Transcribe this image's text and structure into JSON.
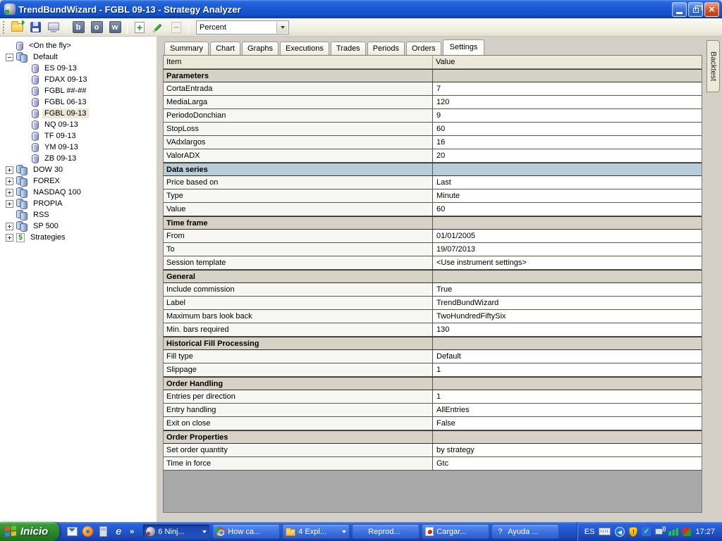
{
  "window": {
    "title": "TrendBundWizard - FGBL 09-13 - Strategy Analyzer"
  },
  "toolbar": {
    "letter_buttons": [
      "b",
      "o",
      "w"
    ],
    "combo": {
      "value": "Percent"
    }
  },
  "tabs": {
    "items": [
      {
        "label": "Summary"
      },
      {
        "label": "Chart"
      },
      {
        "label": "Graphs"
      },
      {
        "label": "Executions"
      },
      {
        "label": "Trades"
      },
      {
        "label": "Periods"
      },
      {
        "label": "Orders"
      },
      {
        "label": "Settings",
        "active": true
      }
    ]
  },
  "side_tab": {
    "label": "Backtest"
  },
  "tree": {
    "items": [
      {
        "label": "<On the fly>",
        "level": 1,
        "expander": "none",
        "icon": "database"
      },
      {
        "label": "Default",
        "level": 1,
        "expander": "minus",
        "icon": "database-group"
      },
      {
        "label": "ES 09-13",
        "level": 2,
        "expander": "none",
        "icon": "database"
      },
      {
        "label": "FDAX 09-13",
        "level": 2,
        "expander": "none",
        "icon": "database"
      },
      {
        "label": "FGBL ##-##",
        "level": 2,
        "expander": "none",
        "icon": "database"
      },
      {
        "label": "FGBL 06-13",
        "level": 2,
        "expander": "none",
        "icon": "database"
      },
      {
        "label": "FGBL 09-13",
        "level": 2,
        "expander": "none",
        "icon": "database",
        "selected": true
      },
      {
        "label": "NQ 09-13",
        "level": 2,
        "expander": "none",
        "icon": "database"
      },
      {
        "label": "TF 09-13",
        "level": 2,
        "expander": "none",
        "icon": "database"
      },
      {
        "label": "YM 09-13",
        "level": 2,
        "expander": "none",
        "icon": "database"
      },
      {
        "label": "ZB 09-13",
        "level": 2,
        "expander": "none",
        "icon": "database"
      },
      {
        "label": "DOW 30",
        "level": 1,
        "expander": "plus",
        "icon": "database-group"
      },
      {
        "label": "FOREX",
        "level": 1,
        "expander": "plus",
        "icon": "database-group"
      },
      {
        "label": "NASDAQ 100",
        "level": 1,
        "expander": "plus",
        "icon": "database-group"
      },
      {
        "label": "PROPIA",
        "level": 1,
        "expander": "plus",
        "icon": "database-group"
      },
      {
        "label": "RSS",
        "level": 1,
        "expander": "none",
        "icon": "database-group"
      },
      {
        "label": "SP 500",
        "level": 1,
        "expander": "plus",
        "icon": "database-group"
      },
      {
        "label": "Strategies",
        "level": 1,
        "expander": "plus",
        "icon": "strategy"
      }
    ]
  },
  "settings_table": {
    "columns": [
      "Item",
      "Value"
    ],
    "rows": [
      {
        "type": "section",
        "item": "Parameters",
        "accent": "gray"
      },
      {
        "type": "data",
        "item": "CortaEntrada",
        "value": "7"
      },
      {
        "type": "data",
        "item": "MediaLarga",
        "value": "120"
      },
      {
        "type": "data",
        "item": "PeriodoDonchian",
        "value": "9"
      },
      {
        "type": "data",
        "item": "StopLoss",
        "value": "60"
      },
      {
        "type": "data",
        "item": "VAdxlargos",
        "value": "16"
      },
      {
        "type": "data",
        "item": "ValorADX",
        "value": "20"
      },
      {
        "type": "section",
        "item": "Data series",
        "accent": "blue"
      },
      {
        "type": "data",
        "item": "Price based on",
        "value": "Last"
      },
      {
        "type": "data",
        "item": "Type",
        "value": "Minute"
      },
      {
        "type": "data",
        "item": "Value",
        "value": "60"
      },
      {
        "type": "section",
        "item": "Time frame",
        "accent": "gray"
      },
      {
        "type": "data",
        "item": "From",
        "value": "01/01/2005"
      },
      {
        "type": "data",
        "item": "To",
        "value": "19/07/2013"
      },
      {
        "type": "data",
        "item": "Session template",
        "value": "<Use instrument settings>"
      },
      {
        "type": "section",
        "item": "General",
        "accent": "gray"
      },
      {
        "type": "data",
        "item": "Include commission",
        "value": "True"
      },
      {
        "type": "data",
        "item": "Label",
        "value": "TrendBundWizard"
      },
      {
        "type": "data",
        "item": "Maximum bars look back",
        "value": "TwoHundredFiftySix"
      },
      {
        "type": "data",
        "item": "Min. bars required",
        "value": "130"
      },
      {
        "type": "section",
        "item": "Historical Fill Processing",
        "accent": "gray"
      },
      {
        "type": "data",
        "item": "Fill type",
        "value": "Default"
      },
      {
        "type": "data",
        "item": "Slippage",
        "value": "1"
      },
      {
        "type": "section",
        "item": "Order Handling",
        "accent": "gray"
      },
      {
        "type": "data",
        "item": "Entries per direction",
        "value": "1"
      },
      {
        "type": "data",
        "item": "Entry handling",
        "value": "AllEntries"
      },
      {
        "type": "data",
        "item": "Exit on close",
        "value": "False"
      },
      {
        "type": "section",
        "item": "Order Properties",
        "accent": "gray"
      },
      {
        "type": "data",
        "item": "Set order quantity",
        "value": "by strategy"
      },
      {
        "type": "data",
        "item": "Time in force",
        "value": "Gtc"
      }
    ]
  },
  "taskbar": {
    "start_label": "Inicio",
    "quick_launch": [
      "mail",
      "firefox",
      "calculator",
      "internet-explorer"
    ],
    "quick_launch_overflow": "»",
    "buttons": [
      {
        "label": "6 Ninj...",
        "icon": "ninjatrader",
        "dropdown": true,
        "active": true
      },
      {
        "label": "How ca...",
        "icon": "chrome",
        "dropdown": false,
        "active": false
      },
      {
        "label": "4 Expl...",
        "icon": "folder",
        "dropdown": true,
        "active": false
      },
      {
        "label": "Reprod...",
        "icon": "media-player",
        "dropdown": false,
        "active": false
      },
      {
        "label": "Cargar...",
        "icon": "pdf",
        "dropdown": false,
        "active": false
      },
      {
        "label": "Ayuda ...",
        "icon": "help-book",
        "dropdown": false,
        "active": false
      }
    ],
    "tray": {
      "lang": "ES",
      "icons": [
        "keyboard",
        "language",
        "security-shield",
        "dropbox",
        "network",
        "signal",
        "antivirus"
      ],
      "time": "17:27"
    }
  },
  "colors": {
    "titlebar_blue": "#1a57d2",
    "taskbar_blue": "#2258d0",
    "start_green": "#2e8a2e",
    "section_gray": "#d6d2c6",
    "section_blue": "#b9cdd8",
    "selection_beige": "#ece7d6",
    "panel_gray": "#d4d0c8",
    "table_filler_gray": "#a8a8a8"
  }
}
